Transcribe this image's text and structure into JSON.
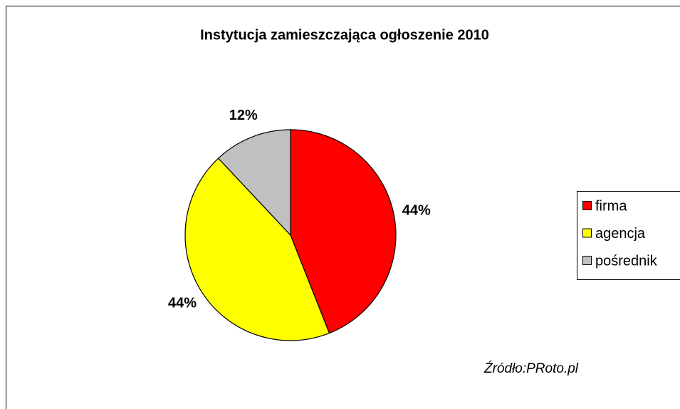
{
  "chart_data": {
    "type": "pie",
    "title": "Instytucja zamieszczająca ogłoszenie 2010",
    "categories": [
      "firma",
      "agencja",
      "pośrednik"
    ],
    "values": [
      44,
      44,
      12
    ],
    "value_labels": [
      "44%",
      "44%",
      "12%"
    ],
    "colors": [
      "#ff0000",
      "#ffff00",
      "#c0c0c0"
    ],
    "annotation": "Źródło:PRoto.pl",
    "legend": "right"
  }
}
